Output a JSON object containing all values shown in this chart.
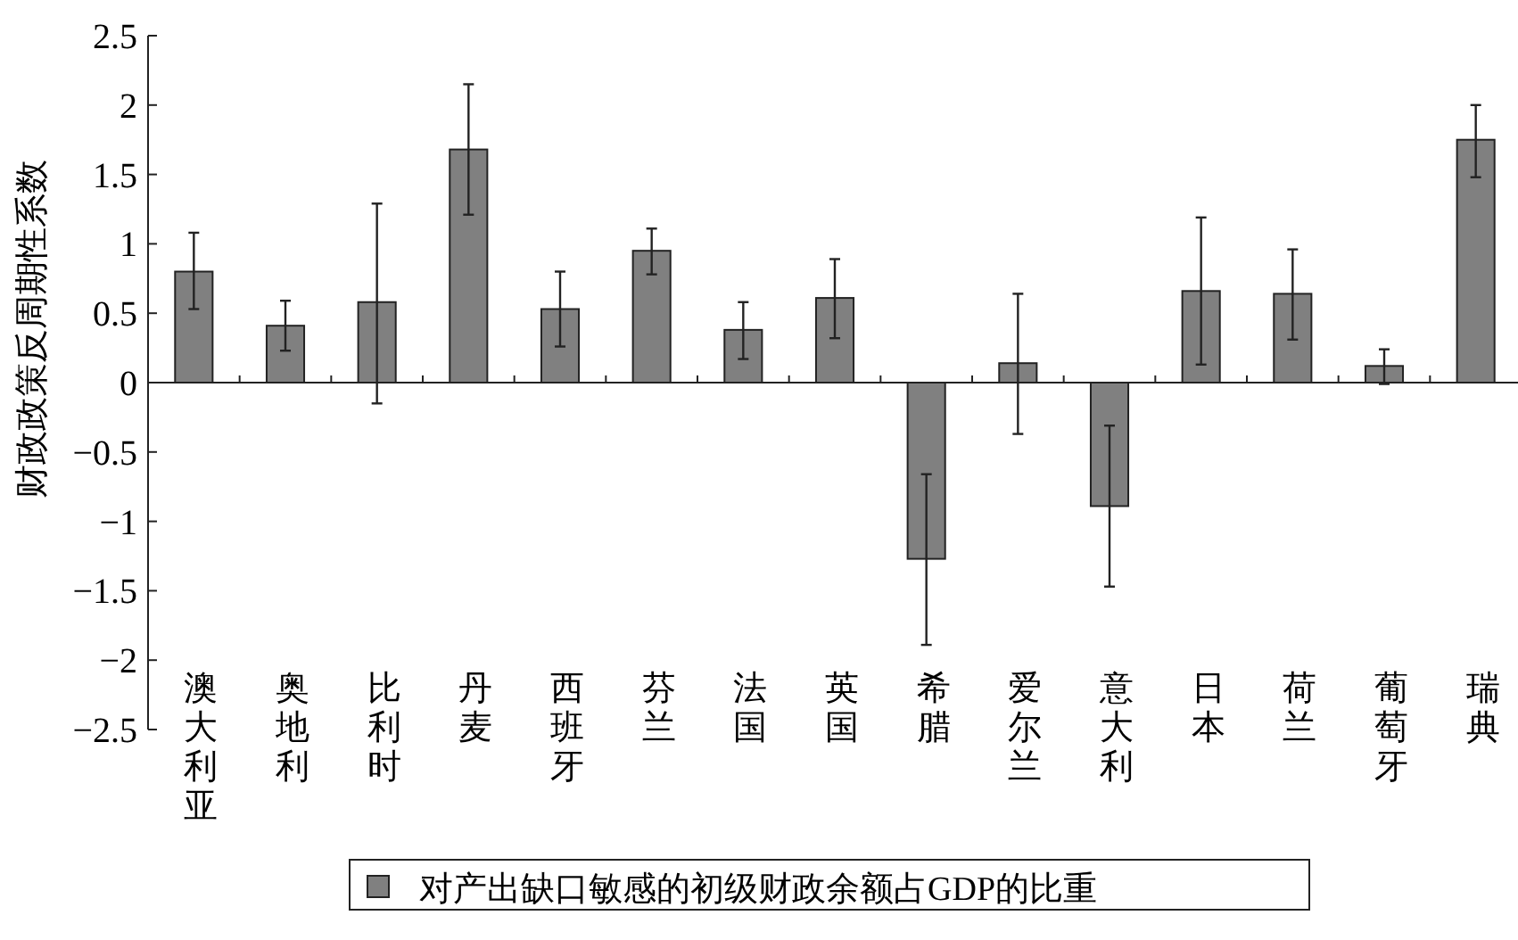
{
  "chart_data": {
    "type": "bar",
    "ylabel": "财政政策反周期性系数",
    "categories": [
      "澳大利亚",
      "奥地利",
      "比利时",
      "丹麦",
      "西班牙",
      "芬兰",
      "法国",
      "英国",
      "希腊",
      "爱尔兰",
      "意大利",
      "日本",
      "荷兰",
      "葡萄牙",
      "瑞典"
    ],
    "series": [
      {
        "name": "对产出缺口敏感的初级财政余额占GDP的比重",
        "color": "#808080",
        "values": [
          0.8,
          0.41,
          0.58,
          1.68,
          0.53,
          0.95,
          0.38,
          0.61,
          -1.27,
          0.14,
          -0.89,
          0.66,
          0.64,
          0.12,
          1.75
        ],
        "errors": [
          [
            0.53,
            1.08
          ],
          [
            0.23,
            0.59
          ],
          [
            -0.15,
            1.29
          ],
          [
            1.21,
            2.15
          ],
          [
            0.26,
            0.8
          ],
          [
            0.78,
            1.11
          ],
          [
            0.17,
            0.58
          ],
          [
            0.32,
            0.89
          ],
          [
            -1.89,
            -0.66
          ],
          [
            -0.37,
            0.64
          ],
          [
            -1.47,
            -0.31
          ],
          [
            0.13,
            1.19
          ],
          [
            0.31,
            0.96
          ],
          [
            -0.01,
            0.24
          ],
          [
            1.48,
            2.0
          ]
        ]
      }
    ],
    "ylim": [
      -2.5,
      2.5
    ],
    "yticks": [
      {
        "value": -2.5,
        "label": "−2.5"
      },
      {
        "value": -2,
        "label": "−2"
      },
      {
        "value": -1.5,
        "label": "−1.5"
      },
      {
        "value": -1,
        "label": "−1"
      },
      {
        "value": -0.5,
        "label": "−0.5"
      },
      0,
      0.5,
      1,
      1.5,
      2,
      2.5
    ],
    "legend": "bottom"
  }
}
